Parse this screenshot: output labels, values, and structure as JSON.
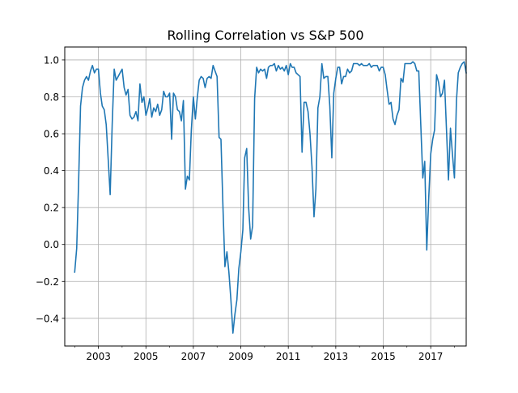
{
  "chart_data": {
    "type": "line",
    "title": "Rolling Correlation vs S&P 500",
    "xlabel": "",
    "ylabel": "",
    "xlim": [
      "2001-08-01",
      "2018-07-01"
    ],
    "ylim": [
      -0.55,
      1.07
    ],
    "grid": true,
    "x_ticks": [
      "2003",
      "2005",
      "2007",
      "2009",
      "2011",
      "2013",
      "2015",
      "2017"
    ],
    "y_ticks": [
      1.0,
      0.8,
      0.6,
      0.4,
      0.2,
      0.0,
      -0.2,
      -0.4
    ],
    "y_tick_labels": [
      "1.0",
      "0.8",
      "0.6",
      "0.4",
      "0.2",
      "0.0",
      "−0.2",
      "−0.4"
    ],
    "series": [
      {
        "color": "#1f77b4",
        "points": [
          [
            "2002-01-01",
            -0.15
          ],
          [
            "2002-02-01",
            -0.02
          ],
          [
            "2002-03-01",
            0.32
          ],
          [
            "2002-04-01",
            0.75
          ],
          [
            "2002-05-01",
            0.85
          ],
          [
            "2002-06-01",
            0.89
          ],
          [
            "2002-07-01",
            0.91
          ],
          [
            "2002-08-01",
            0.89
          ],
          [
            "2002-09-01",
            0.94
          ],
          [
            "2002-10-01",
            0.97
          ],
          [
            "2002-11-01",
            0.93
          ],
          [
            "2002-12-01",
            0.95
          ],
          [
            "2003-01-01",
            0.95
          ],
          [
            "2003-02-01",
            0.82
          ],
          [
            "2003-03-01",
            0.75
          ],
          [
            "2003-04-01",
            0.73
          ],
          [
            "2003-05-01",
            0.65
          ],
          [
            "2003-06-01",
            0.46
          ],
          [
            "2003-07-01",
            0.27
          ],
          [
            "2003-08-01",
            0.65
          ],
          [
            "2003-09-01",
            0.95
          ],
          [
            "2003-10-01",
            0.89
          ],
          [
            "2003-11-01",
            0.91
          ],
          [
            "2003-12-01",
            0.93
          ],
          [
            "2004-01-01",
            0.95
          ],
          [
            "2004-02-01",
            0.85
          ],
          [
            "2004-03-01",
            0.81
          ],
          [
            "2004-04-01",
            0.84
          ],
          [
            "2004-05-01",
            0.7
          ],
          [
            "2004-06-01",
            0.68
          ],
          [
            "2004-07-01",
            0.69
          ],
          [
            "2004-08-01",
            0.72
          ],
          [
            "2004-09-01",
            0.67
          ],
          [
            "2004-10-01",
            0.87
          ],
          [
            "2004-11-01",
            0.77
          ],
          [
            "2004-12-01",
            0.8
          ],
          [
            "2005-01-01",
            0.7
          ],
          [
            "2005-02-01",
            0.74
          ],
          [
            "2005-03-01",
            0.79
          ],
          [
            "2005-04-01",
            0.69
          ],
          [
            "2005-05-01",
            0.74
          ],
          [
            "2005-06-01",
            0.72
          ],
          [
            "2005-07-01",
            0.76
          ],
          [
            "2005-08-01",
            0.7
          ],
          [
            "2005-09-01",
            0.73
          ],
          [
            "2005-10-01",
            0.83
          ],
          [
            "2005-11-01",
            0.8
          ],
          [
            "2005-12-01",
            0.8
          ],
          [
            "2006-01-01",
            0.82
          ],
          [
            "2006-02-01",
            0.57
          ],
          [
            "2006-03-01",
            0.82
          ],
          [
            "2006-04-01",
            0.8
          ],
          [
            "2006-05-01",
            0.73
          ],
          [
            "2006-06-01",
            0.72
          ],
          [
            "2006-07-01",
            0.67
          ],
          [
            "2006-08-01",
            0.78
          ],
          [
            "2006-09-01",
            0.3
          ],
          [
            "2006-10-01",
            0.37
          ],
          [
            "2006-11-01",
            0.35
          ],
          [
            "2006-12-01",
            0.62
          ],
          [
            "2007-01-01",
            0.8
          ],
          [
            "2007-02-01",
            0.68
          ],
          [
            "2007-03-01",
            0.79
          ],
          [
            "2007-04-01",
            0.89
          ],
          [
            "2007-05-01",
            0.91
          ],
          [
            "2007-06-01",
            0.9
          ],
          [
            "2007-07-01",
            0.85
          ],
          [
            "2007-08-01",
            0.9
          ],
          [
            "2007-09-01",
            0.91
          ],
          [
            "2007-10-01",
            0.9
          ],
          [
            "2007-11-01",
            0.97
          ],
          [
            "2007-12-01",
            0.94
          ],
          [
            "2008-01-01",
            0.91
          ],
          [
            "2008-02-01",
            0.58
          ],
          [
            "2008-03-01",
            0.57
          ],
          [
            "2008-04-01",
            0.2
          ],
          [
            "2008-05-01",
            -0.12
          ],
          [
            "2008-06-01",
            -0.04
          ],
          [
            "2008-07-01",
            -0.15
          ],
          [
            "2008-08-01",
            -0.3
          ],
          [
            "2008-09-01",
            -0.48
          ],
          [
            "2008-10-01",
            -0.38
          ],
          [
            "2008-11-01",
            -0.3
          ],
          [
            "2008-12-01",
            -0.13
          ],
          [
            "2009-01-01",
            -0.04
          ],
          [
            "2009-02-01",
            0.08
          ],
          [
            "2009-03-01",
            0.47
          ],
          [
            "2009-04-01",
            0.52
          ],
          [
            "2009-05-01",
            0.2
          ],
          [
            "2009-06-01",
            0.03
          ],
          [
            "2009-07-01",
            0.1
          ],
          [
            "2009-08-01",
            0.79
          ],
          [
            "2009-09-01",
            0.96
          ],
          [
            "2009-10-01",
            0.93
          ],
          [
            "2009-11-01",
            0.95
          ],
          [
            "2009-12-01",
            0.94
          ],
          [
            "2010-01-01",
            0.95
          ],
          [
            "2010-02-01",
            0.9
          ],
          [
            "2010-03-01",
            0.96
          ],
          [
            "2010-04-01",
            0.97
          ],
          [
            "2010-05-01",
            0.97
          ],
          [
            "2010-06-01",
            0.98
          ],
          [
            "2010-07-01",
            0.94
          ],
          [
            "2010-08-01",
            0.97
          ],
          [
            "2010-09-01",
            0.95
          ],
          [
            "2010-10-01",
            0.96
          ],
          [
            "2010-11-01",
            0.94
          ],
          [
            "2010-12-01",
            0.97
          ],
          [
            "2011-01-01",
            0.92
          ],
          [
            "2011-02-01",
            0.98
          ],
          [
            "2011-03-01",
            0.96
          ],
          [
            "2011-04-01",
            0.96
          ],
          [
            "2011-05-01",
            0.93
          ],
          [
            "2011-06-01",
            0.92
          ],
          [
            "2011-07-01",
            0.91
          ],
          [
            "2011-08-01",
            0.5
          ],
          [
            "2011-09-01",
            0.77
          ],
          [
            "2011-10-01",
            0.77
          ],
          [
            "2011-11-01",
            0.72
          ],
          [
            "2011-12-01",
            0.6
          ],
          [
            "2012-01-01",
            0.42
          ],
          [
            "2012-02-01",
            0.15
          ],
          [
            "2012-03-01",
            0.3
          ],
          [
            "2012-04-01",
            0.74
          ],
          [
            "2012-05-01",
            0.8
          ],
          [
            "2012-06-01",
            0.98
          ],
          [
            "2012-07-01",
            0.9
          ],
          [
            "2012-08-01",
            0.91
          ],
          [
            "2012-09-01",
            0.91
          ],
          [
            "2012-10-01",
            0.75
          ],
          [
            "2012-11-01",
            0.47
          ],
          [
            "2012-12-01",
            0.82
          ],
          [
            "2013-01-01",
            0.9
          ],
          [
            "2013-02-01",
            0.96
          ],
          [
            "2013-03-01",
            0.96
          ],
          [
            "2013-04-01",
            0.87
          ],
          [
            "2013-05-01",
            0.91
          ],
          [
            "2013-06-01",
            0.91
          ],
          [
            "2013-07-01",
            0.95
          ],
          [
            "2013-08-01",
            0.93
          ],
          [
            "2013-09-01",
            0.94
          ],
          [
            "2013-10-01",
            0.98
          ],
          [
            "2013-11-01",
            0.98
          ],
          [
            "2013-12-01",
            0.98
          ],
          [
            "2014-01-01",
            0.97
          ],
          [
            "2014-02-01",
            0.98
          ],
          [
            "2014-03-01",
            0.97
          ],
          [
            "2014-04-01",
            0.97
          ],
          [
            "2014-05-01",
            0.97
          ],
          [
            "2014-06-01",
            0.98
          ],
          [
            "2014-07-01",
            0.96
          ],
          [
            "2014-08-01",
            0.97
          ],
          [
            "2014-09-01",
            0.97
          ],
          [
            "2014-10-01",
            0.97
          ],
          [
            "2014-11-01",
            0.94
          ],
          [
            "2014-12-01",
            0.96
          ],
          [
            "2015-01-01",
            0.96
          ],
          [
            "2015-02-01",
            0.92
          ],
          [
            "2015-03-01",
            0.84
          ],
          [
            "2015-04-01",
            0.76
          ],
          [
            "2015-05-01",
            0.77
          ],
          [
            "2015-06-01",
            0.68
          ],
          [
            "2015-07-01",
            0.65
          ],
          [
            "2015-08-01",
            0.7
          ],
          [
            "2015-09-01",
            0.73
          ],
          [
            "2015-10-01",
            0.9
          ],
          [
            "2015-11-01",
            0.88
          ],
          [
            "2015-12-01",
            0.98
          ],
          [
            "2016-01-01",
            0.98
          ],
          [
            "2016-02-01",
            0.98
          ],
          [
            "2016-03-01",
            0.98
          ],
          [
            "2016-04-01",
            0.99
          ],
          [
            "2016-05-01",
            0.98
          ],
          [
            "2016-06-01",
            0.94
          ],
          [
            "2016-07-01",
            0.94
          ],
          [
            "2016-08-01",
            0.65
          ],
          [
            "2016-09-01",
            0.36
          ],
          [
            "2016-10-01",
            0.45
          ],
          [
            "2016-11-01",
            -0.03
          ],
          [
            "2016-12-01",
            0.25
          ],
          [
            "2017-01-01",
            0.49
          ],
          [
            "2017-02-01",
            0.57
          ],
          [
            "2017-03-01",
            0.62
          ],
          [
            "2017-04-01",
            0.92
          ],
          [
            "2017-05-01",
            0.88
          ],
          [
            "2017-06-01",
            0.8
          ],
          [
            "2017-07-01",
            0.82
          ],
          [
            "2017-08-01",
            0.89
          ],
          [
            "2017-09-01",
            0.62
          ],
          [
            "2017-10-01",
            0.35
          ],
          [
            "2017-11-01",
            0.63
          ],
          [
            "2017-12-01",
            0.49
          ],
          [
            "2018-01-01",
            0.36
          ],
          [
            "2018-02-01",
            0.78
          ],
          [
            "2018-03-01",
            0.93
          ],
          [
            "2018-04-01",
            0.96
          ],
          [
            "2018-05-01",
            0.98
          ],
          [
            "2018-06-01",
            0.99
          ],
          [
            "2018-07-01",
            0.93
          ]
        ]
      }
    ]
  }
}
